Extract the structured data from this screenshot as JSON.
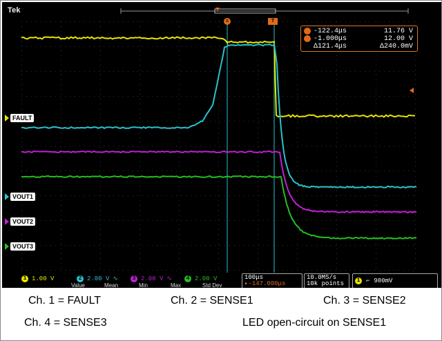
{
  "brand": "Tek",
  "channels": [
    {
      "id": "1",
      "label": "FAULT",
      "color": "#e6e600"
    },
    {
      "id": "2",
      "label": "VOUT1",
      "color": "#29c4cf"
    },
    {
      "id": "3",
      "label": "VOUT2",
      "color": "#c21fd6"
    },
    {
      "id": "4",
      "label": "VOUT3",
      "color": "#25c023"
    }
  ],
  "cursors": {
    "a_label": "a",
    "b_label": "b",
    "trigger_tag": "T"
  },
  "readout": {
    "a_time": "-122.4μs",
    "a_value": "11.76 V",
    "b_time": "-1.000μs",
    "b_value": "12.00 V",
    "delta_time": "Δ121.4μs",
    "delta_value": "Δ240.0mV"
  },
  "bottom": {
    "ch1_scale": "1.00 V",
    "ch2_scale": "2.00 V",
    "ch3_scale": "2.00 V",
    "ch4_scale": "2.00 V",
    "bw_symbol": "∿",
    "stats_labels": [
      "Value",
      "Mean",
      "Min",
      "Max",
      "Std Dev"
    ],
    "timebase": "100μs",
    "trigger_offset": "-147.000μs",
    "sample_rate": "10.0MS/s",
    "record_length": "10k points",
    "trigger_channel": "1",
    "trigger_slope": "⌐",
    "trigger_level": "980mV"
  },
  "captions": {
    "ch1": "Ch. 1 = FAULT",
    "ch2": "Ch. 2 = SENSE1",
    "ch3": "Ch. 3 = SENSE2",
    "ch4": "Ch. 4 = SENSE3",
    "note": "LED open-circuit on SENSE1"
  }
}
